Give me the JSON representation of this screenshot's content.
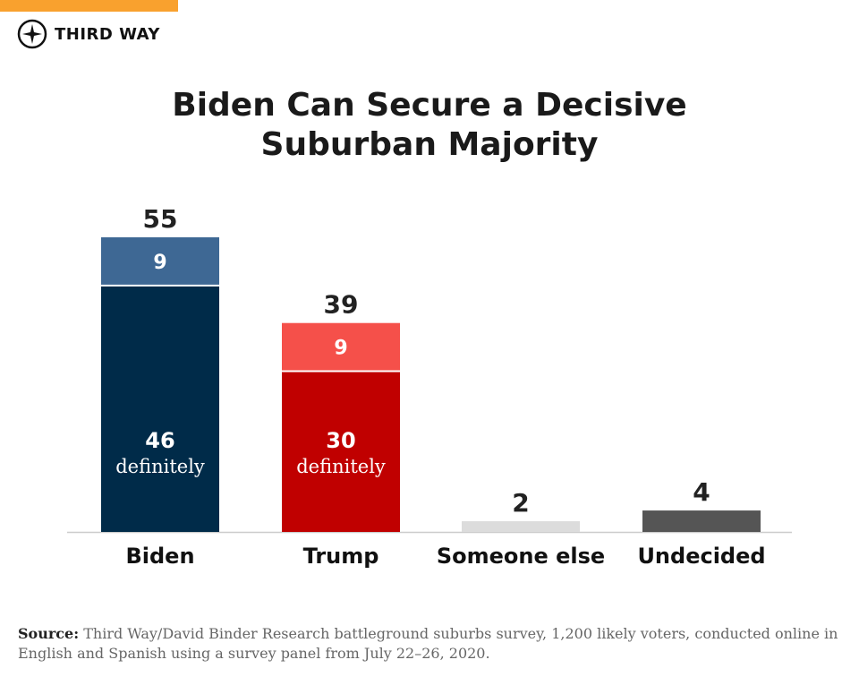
{
  "brand": {
    "name": "THIRD WAY",
    "accent": "#f9a12e"
  },
  "chart_data": {
    "type": "bar",
    "stacked": true,
    "title": "Biden Can Secure a Decisive Suburban Majority",
    "categories": [
      "Biden",
      "Trump",
      "Someone else",
      "Undecided"
    ],
    "totals": [
      55,
      39,
      2,
      4
    ],
    "segments": [
      {
        "category": "Biden",
        "parts": [
          {
            "value": 46,
            "label": "46",
            "sublabel": "definitely",
            "color": "#002b49"
          },
          {
            "value": 9,
            "label": "9",
            "color": "#3e6894"
          }
        ]
      },
      {
        "category": "Trump",
        "parts": [
          {
            "value": 30,
            "label": "30",
            "sublabel": "definitely",
            "color": "#c00000"
          },
          {
            "value": 9,
            "label": "9",
            "color": "#f5504a"
          }
        ]
      },
      {
        "category": "Someone else",
        "parts": [
          {
            "value": 2,
            "color": "#dcdcdc"
          }
        ]
      },
      {
        "category": "Undecided",
        "parts": [
          {
            "value": 4,
            "color": "#555555"
          }
        ]
      }
    ],
    "ylim": [
      0,
      55
    ],
    "grid": false,
    "legend": "none"
  },
  "source": {
    "label": "Source:",
    "text": "Third Way/David Binder Research battleground suburbs survey, 1,200 likely voters, conducted online in English and Spanish using a survey panel from July 22–26, 2020."
  }
}
